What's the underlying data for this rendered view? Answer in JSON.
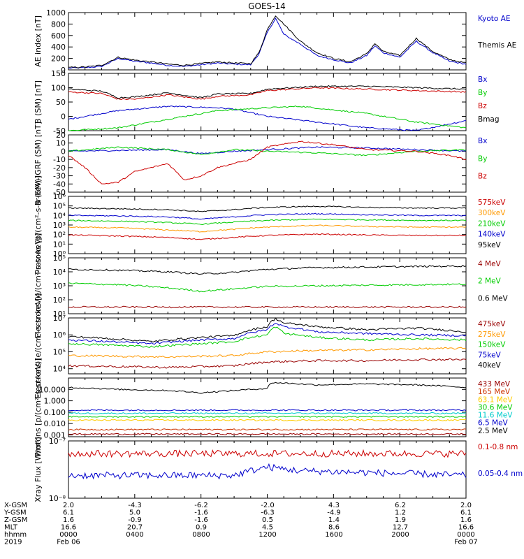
{
  "title": "GOES-14",
  "chart_data": [
    {
      "type": "line",
      "ylabel": "AE index [nT]",
      "ylim": [
        0,
        1000
      ],
      "yticks": [
        "0",
        "200",
        "400",
        "600",
        "800",
        "1000"
      ],
      "series": [
        {
          "name": "Kyoto AE",
          "color": "#0000cc",
          "x": [
            0,
            1,
            2,
            3,
            4,
            5,
            6,
            7,
            8,
            9,
            10,
            11,
            11.5,
            12,
            12.5,
            13,
            14,
            15,
            16,
            17,
            18,
            18.5,
            19,
            20,
            21,
            22,
            23,
            24
          ],
          "values": [
            30,
            40,
            60,
            200,
            150,
            120,
            80,
            60,
            90,
            120,
            100,
            90,
            280,
            650,
            900,
            620,
            450,
            250,
            180,
            120,
            250,
            420,
            300,
            220,
            500,
            300,
            150,
            100
          ]
        },
        {
          "name": "Themis AE",
          "color": "#000000",
          "x": [
            0,
            1,
            2,
            3,
            4,
            5,
            6,
            7,
            8,
            9,
            10,
            11,
            11.5,
            12,
            12.5,
            13,
            14,
            15,
            16,
            17,
            18,
            18.5,
            19,
            20,
            21,
            22,
            23,
            24
          ],
          "values": [
            40,
            50,
            80,
            220,
            170,
            140,
            100,
            80,
            110,
            140,
            120,
            110,
            300,
            700,
            950,
            800,
            500,
            300,
            200,
            140,
            280,
            460,
            320,
            250,
            550,
            320,
            180,
            120
          ]
        }
      ]
    },
    {
      "type": "line",
      "ylabel": "B (SM) [nT]",
      "ylim": [
        -50,
        150
      ],
      "yticks": [
        "-50",
        "0",
        "50",
        "100",
        "150"
      ],
      "series": [
        {
          "name": "Bx",
          "color": "#0000cc",
          "x": [
            0,
            3,
            6,
            9,
            10,
            12,
            15,
            18,
            21,
            24
          ],
          "values": [
            -10,
            20,
            35,
            30,
            25,
            0,
            -20,
            -40,
            -50,
            -15
          ]
        },
        {
          "name": "By",
          "color": "#00cc00",
          "x": [
            0,
            3,
            6,
            9,
            12,
            14,
            18,
            21,
            24
          ],
          "values": [
            -50,
            -40,
            -10,
            20,
            30,
            35,
            10,
            -20,
            -40
          ]
        },
        {
          "name": "Bz",
          "color": "#cc0000",
          "x": [
            0,
            2,
            3,
            4,
            6,
            8,
            9,
            11,
            12,
            15,
            18,
            21,
            24
          ],
          "values": [
            85,
            80,
            60,
            60,
            75,
            60,
            70,
            75,
            90,
            100,
            95,
            90,
            85
          ]
        },
        {
          "name": "Bmag",
          "color": "#000000",
          "x": [
            0,
            2,
            3,
            4,
            6,
            8,
            9,
            11,
            12,
            15,
            18,
            21,
            24
          ],
          "values": [
            95,
            88,
            65,
            68,
            82,
            65,
            78,
            80,
            95,
            105,
            105,
            100,
            95
          ]
        }
      ]
    },
    {
      "type": "line",
      "ylabel": "B (SM)-IGRF (SM) [nT]",
      "ylim": [
        -50,
        20
      ],
      "yticks": [
        "-50",
        "-40",
        "-30",
        "-20",
        "-10",
        "0",
        "10",
        "20"
      ],
      "series": [
        {
          "name": "Bx",
          "color": "#0000cc",
          "x": [
            0,
            3,
            6,
            8,
            10,
            12,
            15,
            18,
            21,
            24
          ],
          "values": [
            0,
            1,
            2,
            -3,
            0,
            2,
            5,
            4,
            2,
            0
          ]
        },
        {
          "name": "By",
          "color": "#00cc00",
          "x": [
            0,
            3,
            6,
            8,
            10,
            12,
            15,
            18,
            21,
            24
          ],
          "values": [
            0,
            5,
            2,
            -4,
            2,
            0,
            -2,
            -5,
            0,
            2
          ]
        },
        {
          "name": "Bz",
          "color": "#cc0000",
          "x": [
            0,
            1,
            2,
            3,
            4,
            6,
            7,
            8,
            9,
            10,
            11,
            12,
            14,
            16,
            18,
            21,
            23,
            24
          ],
          "values": [
            -5,
            -20,
            -40,
            -38,
            -25,
            -15,
            -35,
            -30,
            -20,
            -15,
            -10,
            5,
            12,
            8,
            2,
            0,
            -5,
            -10
          ]
        }
      ]
    },
    {
      "type": "line",
      "ylabel": "Protons [p/(cm²-s-sr-keV)]",
      "yscale": "log",
      "ylim": [
        1,
        1000000
      ],
      "yticks": [
        "10⁰",
        "10¹",
        "10²",
        "10³",
        "10⁴",
        "10⁵",
        "10⁶"
      ],
      "series": [
        {
          "name": "575keV",
          "color": "#cc0000",
          "x": [
            0,
            3,
            6,
            8,
            10,
            12,
            15,
            18,
            21,
            24
          ],
          "values": [
            90,
            70,
            50,
            30,
            50,
            80,
            110,
            90,
            80,
            80
          ]
        },
        {
          "name": "300keV",
          "color": "#ff9900",
          "x": [
            0,
            3,
            6,
            8,
            10,
            12,
            15,
            18,
            21,
            24
          ],
          "values": [
            600,
            500,
            300,
            200,
            350,
            600,
            900,
            700,
            600,
            600
          ]
        },
        {
          "name": "210keV",
          "color": "#00cc00",
          "x": [
            0,
            3,
            6,
            8,
            10,
            12,
            15,
            18,
            21,
            24
          ],
          "values": [
            3000,
            2500,
            1800,
            1200,
            2000,
            3000,
            4000,
            3500,
            3000,
            3000
          ]
        },
        {
          "name": "140keV",
          "color": "#0000cc",
          "x": [
            0,
            3,
            6,
            8,
            10,
            12,
            15,
            18,
            21,
            24
          ],
          "values": [
            10000,
            9000,
            7000,
            4000,
            7000,
            12000,
            15000,
            12000,
            10000,
            10000
          ]
        },
        {
          "name": "95keV",
          "color": "#000000",
          "x": [
            0,
            3,
            6,
            8,
            10,
            12,
            15,
            18,
            21,
            24
          ],
          "values": [
            60000,
            50000,
            40000,
            25000,
            40000,
            70000,
            90000,
            70000,
            60000,
            60000
          ]
        }
      ]
    },
    {
      "type": "line",
      "ylabel": "Electrons [e/(cm²-s-sr-keV)]",
      "yscale": "log",
      "ylim": [
        10,
        100000
      ],
      "yticks": [
        "10¹",
        "10²",
        "10³",
        "10⁴",
        "10⁵"
      ],
      "series": [
        {
          "name": "4 MeV",
          "color": "#990000",
          "x": [
            0,
            6,
            12,
            18,
            24
          ],
          "values": [
            30,
            30,
            30,
            30,
            30
          ]
        },
        {
          "name": "2 MeV",
          "color": "#00cc00",
          "x": [
            0,
            3,
            6,
            8,
            10,
            12,
            15,
            18,
            21,
            24
          ],
          "values": [
            1500,
            1200,
            700,
            400,
            600,
            900,
            1000,
            1100,
            1200,
            1300
          ]
        },
        {
          "name": "0.6 MeV",
          "color": "#000000",
          "x": [
            0,
            3,
            6,
            8,
            10,
            12,
            15,
            18,
            21,
            24
          ],
          "values": [
            15000,
            13000,
            10000,
            7000,
            9000,
            15000,
            20000,
            22000,
            24000,
            26000
          ]
        }
      ]
    },
    {
      "type": "line",
      "ylabel": "Electrons [e/(cm²-s-sr-keV)]",
      "yscale": "log",
      "ylim": [
        5000,
        10000000
      ],
      "yticks": [
        "10⁴",
        "10⁵",
        "10⁶",
        "10⁷"
      ],
      "series": [
        {
          "name": "475keV",
          "color": "#990000",
          "x": [
            0,
            6,
            10,
            12,
            15,
            18,
            21,
            24
          ],
          "values": [
            15000,
            12000,
            15000,
            25000,
            30000,
            30000,
            35000,
            35000
          ]
        },
        {
          "name": "275keV",
          "color": "#ff9900",
          "x": [
            0,
            6,
            10,
            12,
            15,
            18,
            21,
            24
          ],
          "values": [
            60000,
            50000,
            60000,
            100000,
            120000,
            130000,
            150000,
            160000
          ]
        },
        {
          "name": "150keV",
          "color": "#00cc00",
          "x": [
            0,
            5,
            8,
            10,
            12,
            12.5,
            13,
            15,
            18,
            21,
            24
          ],
          "values": [
            300000,
            200000,
            300000,
            400000,
            1000000,
            3000000,
            1200000,
            700000,
            500000,
            600000,
            500000
          ]
        },
        {
          "name": "75keV",
          "color": "#0000cc",
          "x": [
            0,
            5,
            8,
            10,
            12,
            12.5,
            13,
            15,
            18,
            21,
            24
          ],
          "values": [
            500000,
            300000,
            500000,
            600000,
            2000000,
            5000000,
            3000000,
            1500000,
            1200000,
            1000000,
            900000
          ]
        },
        {
          "name": "40keV",
          "color": "#000000",
          "x": [
            0,
            5,
            8,
            10,
            12,
            12.5,
            13,
            15,
            18,
            21,
            24
          ],
          "values": [
            800000,
            400000,
            700000,
            900000,
            3000000,
            9000000,
            5000000,
            3000000,
            2000000,
            2500000,
            1500000
          ]
        }
      ]
    },
    {
      "type": "line",
      "ylabel": "Protons [p/(cm²-s-sr-keV)]",
      "yscale": "log",
      "ylim": [
        0.0007,
        100
      ],
      "yticks": [
        "0.001",
        "0.010",
        "0.100",
        "1.000",
        "10.000"
      ],
      "series": [
        {
          "name": "433 MeV",
          "color": "#990000",
          "x": [
            0,
            24
          ],
          "values": [
            0.0012,
            0.0012
          ]
        },
        {
          "name": "165 MeV",
          "color": "#cc3300",
          "x": [
            0,
            24
          ],
          "values": [
            0.003,
            0.003
          ]
        },
        {
          "name": "63.1 MeV",
          "color": "#ffcc00",
          "x": [
            0,
            24
          ],
          "values": [
            0.02,
            0.02
          ]
        },
        {
          "name": "30.6 MeV",
          "color": "#00cc00",
          "x": [
            0,
            24
          ],
          "values": [
            0.04,
            0.04
          ]
        },
        {
          "name": "11.6 MeV",
          "color": "#00cccc",
          "x": [
            0,
            24
          ],
          "values": [
            0.08,
            0.08
          ]
        },
        {
          "name": "6.5 MeV",
          "color": "#0000cc",
          "x": [
            0,
            24
          ],
          "values": [
            0.15,
            0.15
          ]
        },
        {
          "name": "2.5 MeV",
          "color": "#000000",
          "x": [
            0,
            3,
            6,
            8,
            10,
            12,
            12.3,
            15,
            18,
            21,
            24
          ],
          "values": [
            15,
            10,
            8,
            5,
            8,
            12,
            40,
            25,
            30,
            25,
            15
          ]
        }
      ]
    },
    {
      "type": "line",
      "ylabel": "Xray Flux [W/m²]",
      "yscale": "log",
      "ylim": [
        1e-08,
        1e-07
      ],
      "yticks": [
        "10⁻⁸",
        "10⁻⁷"
      ],
      "series": [
        {
          "name": "0.1-0.8 nm",
          "color": "#cc0000",
          "x": [
            0,
            24
          ],
          "values": [
            6e-08,
            6e-08
          ]
        },
        {
          "name": "0.05-0.4 nm",
          "color": "#0000cc",
          "x": [
            0,
            10,
            12,
            14,
            24
          ],
          "values": [
            2.5e-08,
            2.5e-08,
            3.5e-08,
            3e-08,
            2.5e-08
          ]
        }
      ]
    }
  ],
  "axis_table": {
    "row_labels": [
      "X-GSM",
      "Y-GSM",
      "Z-GSM",
      "MLT",
      "hhmm",
      "2019"
    ],
    "rows": [
      [
        "2.0",
        "-4.3",
        "-6.2",
        "-2.0",
        "4.3",
        "6.2",
        "2.0"
      ],
      [
        "6.1",
        "5.0",
        "-1.6",
        "-6.3",
        "-4.9",
        "1.2",
        "6.1"
      ],
      [
        "1.6",
        "-0.9",
        "-1.6",
        "0.5",
        "1.4",
        "1.9",
        "1.6"
      ],
      [
        "16.6",
        "20.7",
        "0.9",
        "4.5",
        "8.6",
        "12.7",
        "16.6"
      ],
      [
        "0000",
        "0400",
        "0800",
        "1200",
        "1600",
        "2000",
        "0000"
      ],
      [
        "Feb 06",
        "",
        "",
        "",
        "",
        "",
        "Feb 07"
      ]
    ]
  }
}
